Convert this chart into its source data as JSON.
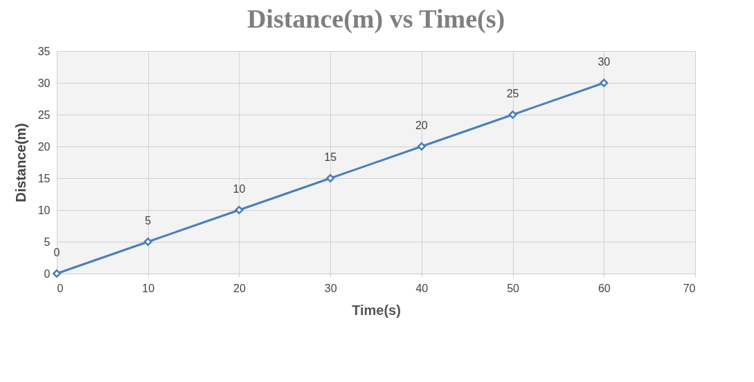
{
  "chart_data": {
    "type": "line",
    "title": "Distance(m) vs Time(s)",
    "xlabel": "Time(s)",
    "ylabel": "Distance(m)",
    "x": [
      0,
      10,
      20,
      30,
      40,
      50,
      60
    ],
    "series": [
      {
        "color": "#4a7ebb",
        "values": [
          0,
          5,
          10,
          15,
          20,
          25,
          30
        ]
      }
    ],
    "xlim": [
      0,
      70
    ],
    "xticks": [
      0,
      10,
      20,
      30,
      40,
      50,
      60,
      70
    ],
    "ylim": [
      0,
      35
    ],
    "yticks": [
      0,
      5,
      10,
      15,
      20,
      25,
      30,
      35
    ],
    "grid": true,
    "marker": "diamond",
    "line_style": "solid",
    "data_labels": true
  }
}
